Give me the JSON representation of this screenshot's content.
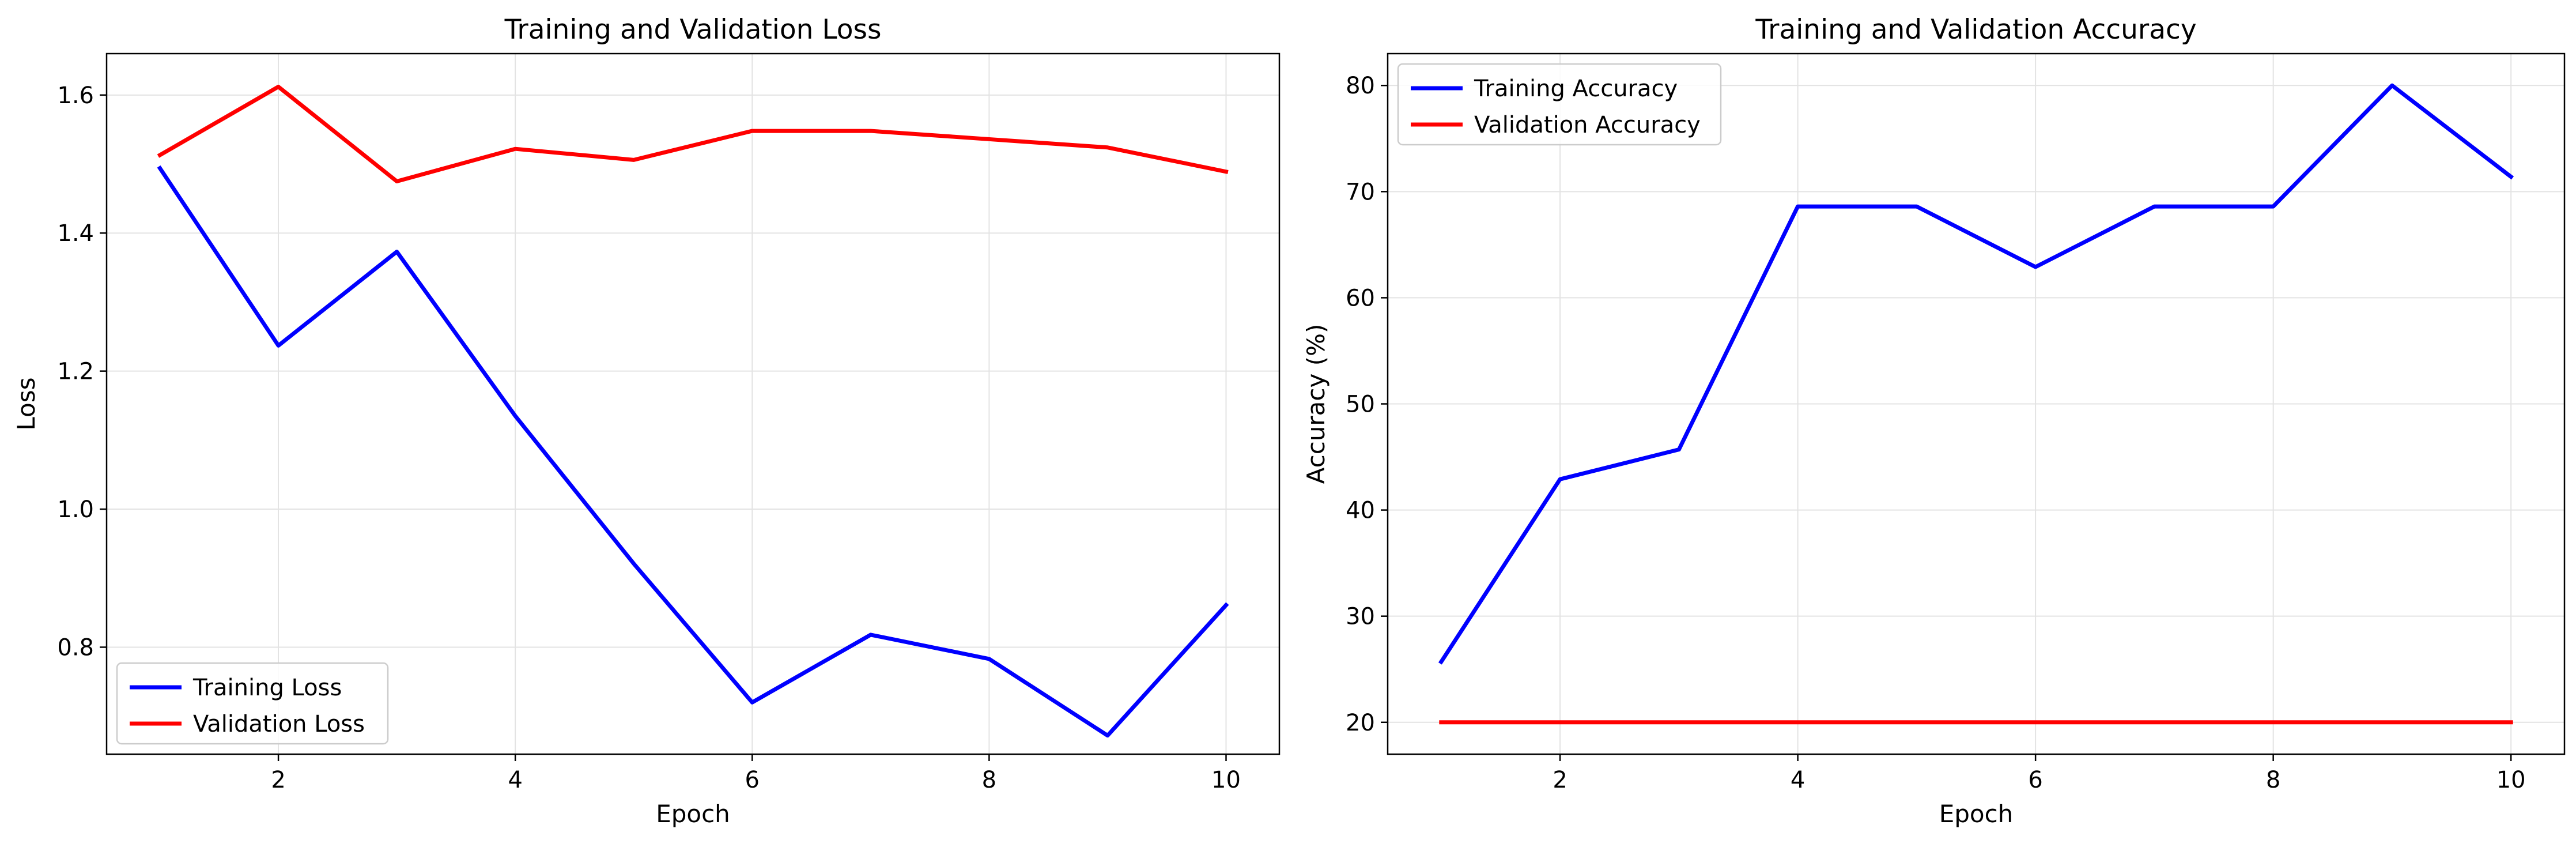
{
  "chart_data": [
    {
      "type": "line",
      "title": "Training and Validation Loss",
      "xlabel": "Epoch",
      "ylabel": "Loss",
      "xlim": [
        0.55,
        10.45
      ],
      "ylim": [
        0.645,
        1.66
      ],
      "xticks": [
        2,
        4,
        6,
        8,
        10
      ],
      "yticks": [
        0.8,
        1.0,
        1.2,
        1.4,
        1.6
      ],
      "ytick_labels": [
        "0.8",
        "1.0",
        "1.2",
        "1.4",
        "1.6"
      ],
      "grid": true,
      "legend_position": "lower-left",
      "x": [
        1,
        2,
        3,
        4,
        5,
        6,
        7,
        8,
        9,
        10
      ],
      "series": [
        {
          "name": "Training Loss",
          "color": "#0000ff",
          "values": [
            1.494,
            1.237,
            1.373,
            1.135,
            0.921,
            0.72,
            0.818,
            0.783,
            0.672,
            0.861
          ]
        },
        {
          "name": "Validation Loss",
          "color": "#ff0000",
          "values": [
            1.513,
            1.612,
            1.475,
            1.522,
            1.506,
            1.548,
            1.548,
            1.536,
            1.524,
            1.489
          ]
        }
      ]
    },
    {
      "type": "line",
      "title": "Training and Validation Accuracy",
      "xlabel": "Epoch",
      "ylabel": "Accuracy (%)",
      "xlim": [
        0.55,
        10.45
      ],
      "ylim": [
        17.0,
        83.0
      ],
      "xticks": [
        2,
        4,
        6,
        8,
        10
      ],
      "yticks": [
        20,
        30,
        40,
        50,
        60,
        70,
        80
      ],
      "ytick_labels": [
        "20",
        "30",
        "40",
        "50",
        "60",
        "70",
        "80"
      ],
      "grid": true,
      "legend_position": "upper-left",
      "x": [
        1,
        2,
        3,
        4,
        5,
        6,
        7,
        8,
        9,
        10
      ],
      "series": [
        {
          "name": "Training Accuracy",
          "color": "#0000ff",
          "values": [
            25.7,
            42.9,
            45.7,
            68.6,
            68.6,
            62.9,
            68.6,
            68.6,
            80.0,
            71.4
          ]
        },
        {
          "name": "Validation Accuracy",
          "color": "#ff0000",
          "values": [
            20,
            20,
            20,
            20,
            20,
            20,
            20,
            20,
            20,
            20
          ]
        }
      ]
    }
  ]
}
